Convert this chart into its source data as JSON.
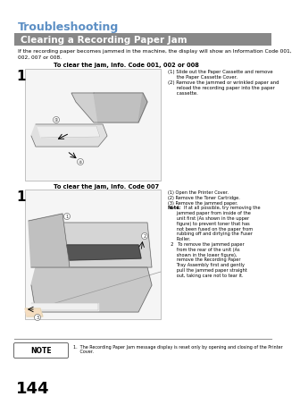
{
  "title": "Troubleshooting",
  "section_header": "Clearing a Recording Paper Jam",
  "intro_text": "If the recording paper becomes jammed in the machine, the display will show an Information Code 001,\n002, 007 or 008.",
  "subsection1_title": "To clear the jam, Info. Code 001, 002 or 008",
  "step1_label": "1",
  "step1_line1": "(1) Slide out the Paper Cassette and remove",
  "step1_line2": "      the Paper Cassette Cover.",
  "step1_line3": "(2) Remove the jammed or wrinkled paper and",
  "step1_line4": "      reload the recording paper into the paper",
  "step1_line5": "      cassette.",
  "subsection2_title": "To clear the jam, Info. Code 007",
  "step2_label": "1",
  "step2_line1": "(1) Open the Printer Cover.",
  "step2_line2": "(2) Remove the Toner Cartridge.",
  "step2_line3": "(3) Remove the jammed paper.",
  "step2_note_bold": "Note:",
  "step2_note1": "1   If at all possible, try removing the",
  "step2_note1b": "      jammed paper from inside of the",
  "step2_note1c": "      unit first (As shown in the upper",
  "step2_note1d": "      figure) to prevent toner that has",
  "step2_note1e": "      not been fused on the paper from",
  "step2_note1f": "      rubbing off and dirtying the Fuser",
  "step2_note1g": "      Roller.",
  "step2_note2": "  2   To remove the jammed paper",
  "step2_note2b": "      from the rear of the unit (As",
  "step2_note2c": "      shown in the lower figure),",
  "step2_note2d": "      remove the Recording Paper",
  "step2_note2e": "      Tray Assembly first and gently",
  "step2_note2f": "      pull the jammed paper straight",
  "step2_note2g": "      out, taking care not to tear it.",
  "note_label": "NOTE",
  "note_text1": "1.  The Recording Paper Jam message display is reset only by opening and closing of the Printer",
  "note_text2": "     Cover.",
  "page_number": "144",
  "bg_color": "#ffffff",
  "title_color": "#5b8ec4",
  "header_bg_color": "#888888",
  "header_text_color": "#ffffff",
  "body_text_color": "#000000",
  "image1_bg": "#f5f5f5",
  "image2_bg": "#f5f5f5",
  "note_border_color": "#666666",
  "separator_color": "#999999"
}
